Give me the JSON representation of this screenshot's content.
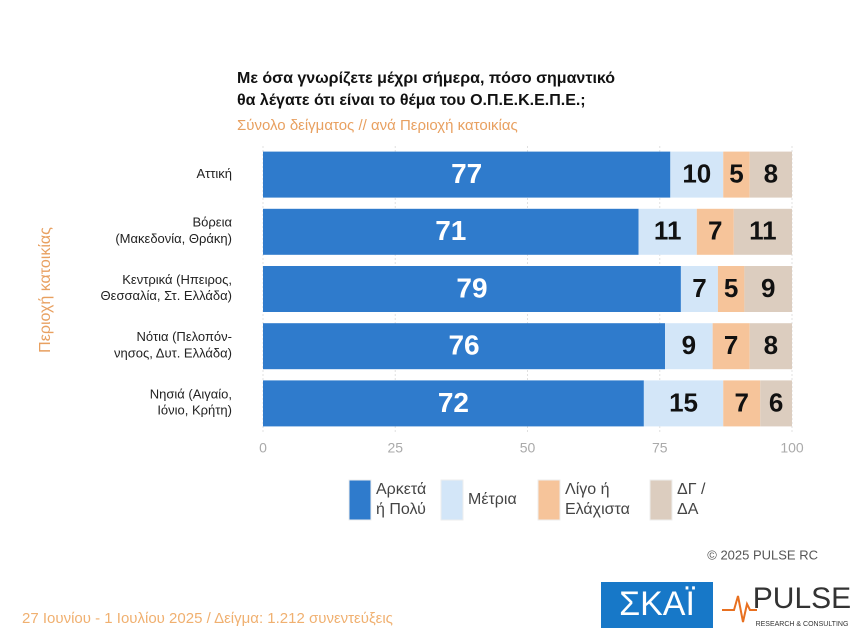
{
  "chart_data": {
    "type": "stacked-barh",
    "title": [
      "Με όσα γνωρίζετε μέχρι σήμερα, πόσο σημαντικό",
      "θα λέγατε ότι είναι το θέμα του  Ο.Π.Ε.Κ.Ε.Π.Ε.;"
    ],
    "subtitle": "Σύνολο δείγματος // ανά Περιοχή κατοικίας",
    "ylabel": "Περιοχή κατοικίας",
    "categories": [
      "Αττική",
      "Βόρεια\n(Μακεδονία, Θράκη)",
      "Κεντρικά (Ηπειρος,\nΘεσσαλία, Στ. Ελλάδα)",
      "Νότια (Πελοπόν-\nνησος, Δυτ. Ελλάδα)",
      "Νησιά (Αιγαίο,\nΙόνιο, Κρήτη)"
    ],
    "series": [
      {
        "name": "Αρκετά\nή Πολύ",
        "color": "#2f7bcc",
        "values": [
          77,
          71,
          79,
          76,
          72
        ]
      },
      {
        "name": "Μέτρια",
        "color": "#d3e6f8",
        "values": [
          10,
          11,
          7,
          9,
          15
        ]
      },
      {
        "name": "Λίγο ή\nΕλάχιστα",
        "color": "#f6c49a",
        "values": [
          5,
          7,
          5,
          7,
          7
        ]
      },
      {
        "name": "ΔΓ /\nΔΑ",
        "color": "#dccdbf",
        "values": [
          8,
          11,
          9,
          8,
          6
        ]
      }
    ],
    "xlim": [
      0,
      100
    ],
    "xticks": [
      0,
      25,
      50,
      75,
      100
    ]
  },
  "copyright": "©  2025  PULSE RC",
  "footer": "27 Ιουνίου - 1 Ιουλίου 2025  /  Δείγμα:  1.212 συνεντεύξεις",
  "logos": [
    "ΣΚΑΪ",
    "PULSE",
    "RESEARCH & CONSULTING"
  ]
}
